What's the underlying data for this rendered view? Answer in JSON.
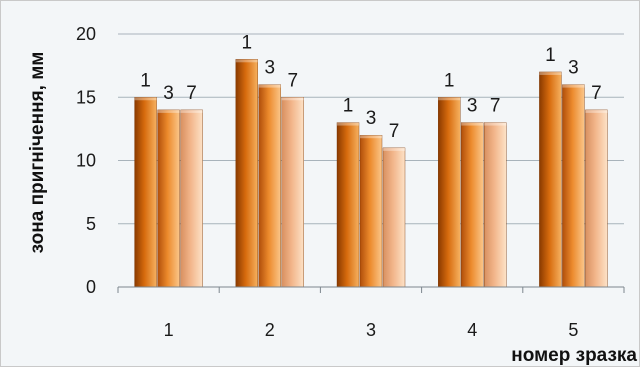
{
  "chart_data": {
    "type": "bar",
    "categories": [
      "1",
      "2",
      "3",
      "4",
      "5"
    ],
    "series": [
      {
        "name": "1",
        "values": [
          15,
          18,
          13,
          15,
          17
        ]
      },
      {
        "name": "3",
        "values": [
          14,
          16,
          12,
          13,
          16
        ]
      },
      {
        "name": "7",
        "values": [
          14,
          15,
          11,
          13,
          14
        ]
      }
    ],
    "title": "",
    "xlabel": "номер зразка",
    "ylabel": "зона пригнічення, мм",
    "ylim": [
      0,
      20
    ],
    "yticks": [
      0,
      5,
      10,
      15,
      20
    ],
    "grid": true,
    "legend": "none",
    "colors": {
      "series": [
        [
          "#8a3a00",
          "#d76b0d",
          "#f6b160"
        ],
        [
          "#b04e0a",
          "#ec8a2c",
          "#fbc68a"
        ],
        [
          "#d89060",
          "#f2b58a",
          "#fde2c7"
        ]
      ],
      "gridline": "#a8b3bb",
      "axis": "#7d878e",
      "background": "#f3f6f8"
    }
  }
}
